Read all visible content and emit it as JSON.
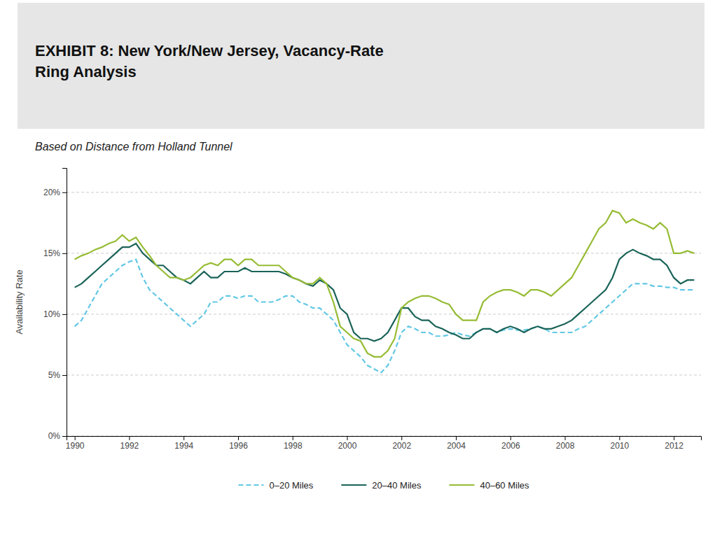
{
  "chart_data": {
    "type": "line",
    "title": "EXHIBIT 8:  New York/New Jersey, Vacancy-Rate\nRing Analysis",
    "subtitle": "Based on Distance from Holland Tunnel",
    "y_label": "Availability Rate",
    "x": [
      1990.0,
      1990.25,
      1990.5,
      1990.75,
      1991.0,
      1991.25,
      1991.5,
      1991.75,
      1992.0,
      1992.25,
      1992.5,
      1992.75,
      1993.0,
      1993.25,
      1993.5,
      1993.75,
      1994.0,
      1994.25,
      1994.5,
      1994.75,
      1995.0,
      1995.25,
      1995.5,
      1995.75,
      1996.0,
      1996.25,
      1996.5,
      1996.75,
      1997.0,
      1997.25,
      1997.5,
      1997.75,
      1998.0,
      1998.25,
      1998.5,
      1998.75,
      1999.0,
      1999.25,
      1999.5,
      1999.75,
      2000.0,
      2000.25,
      2000.5,
      2000.75,
      2001.0,
      2001.25,
      2001.5,
      2001.75,
      2002.0,
      2002.25,
      2002.5,
      2002.75,
      2003.0,
      2003.25,
      2003.5,
      2003.75,
      2004.0,
      2004.25,
      2004.5,
      2004.75,
      2005.0,
      2005.25,
      2005.5,
      2005.75,
      2006.0,
      2006.25,
      2006.5,
      2006.75,
      2007.0,
      2007.25,
      2007.5,
      2007.75,
      2008.0,
      2008.25,
      2008.5,
      2008.75,
      2009.0,
      2009.25,
      2009.5,
      2009.75,
      2010.0,
      2010.25,
      2010.5,
      2010.75,
      2011.0,
      2011.25,
      2011.5,
      2011.75,
      2012.0,
      2012.25,
      2012.5,
      2012.75
    ],
    "series": [
      {
        "name": "0–20 Miles",
        "color": "#62c8e5",
        "line_style": "dashed",
        "values": [
          9.0,
          9.5,
          10.5,
          11.5,
          12.5,
          13.0,
          13.5,
          14.0,
          14.3,
          14.5,
          13.0,
          12.0,
          11.5,
          11.0,
          10.5,
          10.0,
          9.5,
          9.0,
          9.5,
          10.0,
          11.0,
          11.0,
          11.5,
          11.5,
          11.3,
          11.5,
          11.5,
          11.0,
          11.0,
          11.0,
          11.2,
          11.5,
          11.5,
          11.0,
          10.8,
          10.5,
          10.5,
          10.0,
          9.5,
          8.5,
          7.5,
          7.0,
          6.5,
          5.8,
          5.5,
          5.2,
          5.8,
          7.0,
          8.5,
          9.0,
          8.8,
          8.5,
          8.5,
          8.2,
          8.2,
          8.3,
          8.5,
          8.3,
          8.2,
          8.5,
          8.8,
          8.8,
          8.5,
          8.7,
          8.8,
          8.7,
          8.7,
          8.8,
          9.0,
          8.8,
          8.5,
          8.5,
          8.5,
          8.5,
          8.8,
          9.0,
          9.5,
          10.0,
          10.5,
          11.0,
          11.5,
          12.0,
          12.5,
          12.5,
          12.5,
          12.3,
          12.3,
          12.2,
          12.2,
          12.0,
          12.0,
          12.0
        ]
      },
      {
        "name": "20–40 Miles",
        "color": "#1a6358",
        "line_style": "solid",
        "values": [
          12.2,
          12.5,
          13.0,
          13.5,
          14.0,
          14.5,
          15.0,
          15.5,
          15.5,
          15.8,
          15.0,
          14.5,
          14.0,
          14.0,
          13.5,
          13.0,
          12.8,
          12.5,
          13.0,
          13.5,
          13.0,
          13.0,
          13.5,
          13.5,
          13.5,
          13.8,
          13.5,
          13.5,
          13.5,
          13.5,
          13.5,
          13.3,
          13.0,
          12.8,
          12.5,
          12.3,
          12.8,
          12.5,
          12.0,
          10.5,
          10.0,
          8.5,
          8.0,
          8.0,
          7.8,
          8.0,
          8.5,
          9.5,
          10.5,
          10.5,
          9.8,
          9.5,
          9.5,
          9.0,
          8.8,
          8.5,
          8.3,
          8.0,
          8.0,
          8.5,
          8.8,
          8.8,
          8.5,
          8.8,
          9.0,
          8.8,
          8.5,
          8.8,
          9.0,
          8.8,
          8.8,
          9.0,
          9.2,
          9.5,
          10.0,
          10.5,
          11.0,
          11.5,
          12.0,
          13.0,
          14.5,
          15.0,
          15.3,
          15.0,
          14.8,
          14.5,
          14.5,
          14.0,
          13.0,
          12.5,
          12.8,
          12.8
        ]
      },
      {
        "name": "40–60 Miles",
        "color": "#96bc34",
        "line_style": "solid",
        "values": [
          14.5,
          14.8,
          15.0,
          15.3,
          15.5,
          15.8,
          16.0,
          16.5,
          16.0,
          16.3,
          15.5,
          14.8,
          14.0,
          13.5,
          13.0,
          13.0,
          12.8,
          13.0,
          13.5,
          14.0,
          14.2,
          14.0,
          14.5,
          14.5,
          14.0,
          14.5,
          14.5,
          14.0,
          14.0,
          14.0,
          14.0,
          13.5,
          13.0,
          12.8,
          12.5,
          12.5,
          13.0,
          12.5,
          11.0,
          9.0,
          8.5,
          8.0,
          7.8,
          6.8,
          6.5,
          6.5,
          7.0,
          8.0,
          10.5,
          11.0,
          11.3,
          11.5,
          11.5,
          11.3,
          11.0,
          10.8,
          10.0,
          9.5,
          9.5,
          9.5,
          11.0,
          11.5,
          11.8,
          12.0,
          12.0,
          11.8,
          11.5,
          12.0,
          12.0,
          11.8,
          11.5,
          12.0,
          12.5,
          13.0,
          14.0,
          15.0,
          16.0,
          17.0,
          17.5,
          18.5,
          18.3,
          17.5,
          17.8,
          17.5,
          17.3,
          17.0,
          17.5,
          17.0,
          15.0,
          15.0,
          15.2,
          15.0
        ]
      }
    ],
    "xlim": [
      1989.7,
      2013.0
    ],
    "xticks": [
      1990,
      1992,
      1994,
      1996,
      1998,
      2000,
      2002,
      2004,
      2006,
      2008,
      2010,
      2012
    ],
    "ylim": [
      0,
      22
    ],
    "yticks": [
      {
        "value": 0,
        "label": "0%"
      },
      {
        "value": 5,
        "label": "5%"
      },
      {
        "value": 10,
        "label": "10%"
      },
      {
        "value": 15,
        "label": "15%"
      },
      {
        "value": 20,
        "label": "20%"
      }
    ],
    "grid": true,
    "legend": "bottom"
  }
}
